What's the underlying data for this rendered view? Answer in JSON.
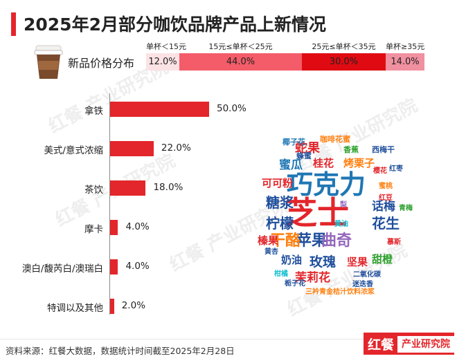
{
  "title": "2025年2月部分咖饮品牌产品上新情况",
  "colors": {
    "accent": "#e3262b"
  },
  "price": {
    "label": "新品价格分布",
    "segments": [
      {
        "header": "单杯＜15元",
        "value": "12.0%",
        "share": 12,
        "color": "#fbe2e4"
      },
      {
        "header": "15元≤单杯＜25元",
        "value": "44.0%",
        "share": 44,
        "color": "#f35c68"
      },
      {
        "header": "25元≤单杯＜35元",
        "value": "30.0%",
        "share": 30,
        "color": "#e00b12"
      },
      {
        "header": "单杯≥35元",
        "value": "14.0%",
        "share": 14,
        "color": "#f190a0"
      }
    ]
  },
  "chart_data": {
    "type": "bar",
    "orientation": "horizontal",
    "categories": [
      "拿铁",
      "美式/意式浓缩",
      "茶饮",
      "摩卡",
      "澳白/馥芮白/澳瑞白",
      "特调以及其他"
    ],
    "values": [
      50.0,
      22.0,
      18.0,
      4.0,
      4.0,
      2.0
    ],
    "value_labels": [
      "50.0%",
      "22.0%",
      "18.0%",
      "4.0%",
      "4.0%",
      "2.0%"
    ],
    "unit": "%",
    "xlim": [
      0,
      50
    ],
    "grid": false,
    "legend": "none"
  },
  "wordcloud": [
    {
      "text": "巧克力",
      "color": "#1f77b4"
    },
    {
      "text": "芝士",
      "color": "#e3262b"
    },
    {
      "text": "苹果",
      "color": "#1f4e9c"
    },
    {
      "text": "干酪",
      "color": "#ff7f0e"
    },
    {
      "text": "曲奇",
      "color": "#9467bd"
    },
    {
      "text": "糖浆",
      "color": "#1f4e9c"
    },
    {
      "text": "柠檬",
      "color": "#1f4e9c"
    },
    {
      "text": "花生",
      "color": "#1f4e9c"
    },
    {
      "text": "玫瑰",
      "color": "#1f4e9c"
    },
    {
      "text": "蛇果",
      "color": "#e3262b"
    },
    {
      "text": "桂花",
      "color": "#e3262b"
    },
    {
      "text": "烤栗子",
      "color": "#ff7f0e"
    },
    {
      "text": "蜜瓜",
      "color": "#1f77b4"
    },
    {
      "text": "可可粉",
      "color": "#e3262b"
    },
    {
      "text": "话梅",
      "color": "#1f4e9c"
    },
    {
      "text": "榛果",
      "color": "#e3262b"
    },
    {
      "text": "奶油",
      "color": "#1f4e9c"
    },
    {
      "text": "坚果",
      "color": "#e3262b"
    },
    {
      "text": "甜橙",
      "color": "#2ca02c"
    },
    {
      "text": "茉莉花",
      "color": "#e3262b"
    },
    {
      "text": "咖啡花蜜",
      "color": "#ff7f0e"
    },
    {
      "text": "椰子花",
      "color": "#1f77b4"
    },
    {
      "text": "蜂蜜",
      "color": "#1f4e9c"
    },
    {
      "text": "香蕉",
      "color": "#2ca02c"
    },
    {
      "text": "西梅干",
      "color": "#1f4e9c"
    },
    {
      "text": "红枣",
      "color": "#1f4e9c"
    },
    {
      "text": "樱花",
      "color": "#e3262b"
    },
    {
      "text": "蜜桃",
      "color": "#ff7f0e"
    },
    {
      "text": "红豆",
      "color": "#e3262b"
    },
    {
      "text": "青梅",
      "color": "#2ca02c"
    },
    {
      "text": "梨",
      "color": "#9467bd"
    },
    {
      "text": "黄油",
      "color": "#17becf"
    },
    {
      "text": "慕斯",
      "color": "#e3262b"
    },
    {
      "text": "黄杏",
      "color": "#1f4e9c"
    },
    {
      "text": "柑橘",
      "color": "#17becf"
    },
    {
      "text": "二氧化碳",
      "color": "#1f4e9c"
    },
    {
      "text": "栀子花",
      "color": "#1f4e9c"
    },
    {
      "text": "迷迭香",
      "color": "#1f4e9c"
    },
    {
      "text": "三衿青金桔汁饮料浓浆",
      "color": "#ff7f0e"
    }
  ],
  "watermark": "红餐 产业研究院",
  "footer": {
    "source": "资料来源：红餐大数据，数据统计时间截至2025年2月28日",
    "logo_mark": "红餐",
    "logo_text": "产业研究院"
  }
}
